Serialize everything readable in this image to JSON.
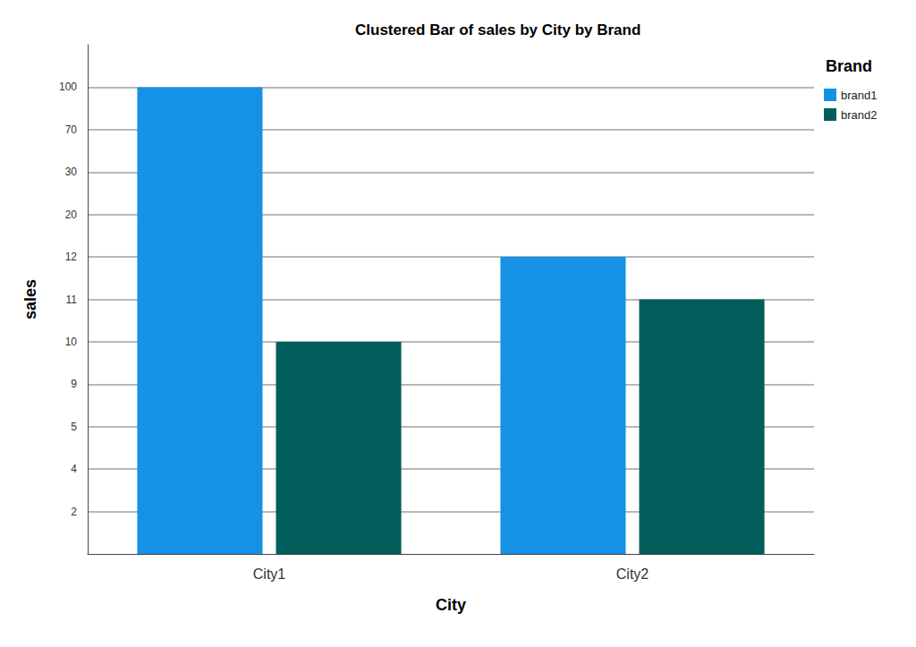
{
  "chart_data": {
    "type": "bar",
    "title": "Clustered Bar of sales by City by Brand",
    "x_label": "City",
    "y_label": "sales",
    "categories": [
      "City1",
      "City2"
    ],
    "series": [
      {
        "name": "brand1",
        "color": "#1592e6",
        "values": [
          100,
          12
        ]
      },
      {
        "name": "brand2",
        "color": "#025e5a",
        "values": [
          10,
          11
        ]
      }
    ],
    "yticks": [
      2,
      4,
      5,
      9,
      10,
      11,
      12,
      20,
      30,
      70,
      100
    ],
    "legend_title": "Brand",
    "legend": "right",
    "grid": true
  }
}
